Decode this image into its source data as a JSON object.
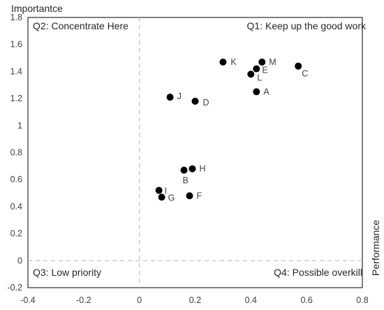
{
  "chart_data": {
    "type": "scatter",
    "title": "",
    "xlabel": "Performance",
    "ylabel": "Importantce",
    "xlim": [
      -0.4,
      0.8
    ],
    "ylim": [
      -0.2,
      1.8
    ],
    "x_ticks": [
      -0.4,
      -0.2,
      0,
      0.2,
      0.4,
      0.6,
      0.8
    ],
    "x_tick_labels": [
      "-0.4",
      "-0.2",
      "0",
      "0.2",
      "0.4",
      "0.6",
      "0.8"
    ],
    "y_ticks": [
      -0.2,
      0,
      0.2,
      0.4,
      0.6,
      0.8,
      1,
      1.2,
      1.4,
      1.6,
      1.8
    ],
    "y_tick_labels": [
      "-0.2",
      "0",
      "0.2",
      "0.4",
      "0.6",
      "0.8",
      "1",
      "1.2",
      "1.4",
      "1.6",
      "1.8"
    ],
    "grid": false,
    "reference_lines": {
      "x": 0,
      "y": 0,
      "style": "dashed",
      "color": "#bfbfbf"
    },
    "quadrant_labels": {
      "q1": "Q1: Keep up the good work",
      "q2": "Q2: Concentrate Here",
      "q3": "Q3: Low priority",
      "q4": "Q4: Possible overkill"
    },
    "marker_color": "#000000",
    "points": [
      {
        "label": "K",
        "x": 0.3,
        "y": 1.47
      },
      {
        "label": "M",
        "x": 0.44,
        "y": 1.47
      },
      {
        "label": "E",
        "x": 0.42,
        "y": 1.42
      },
      {
        "label": "L",
        "x": 0.4,
        "y": 1.38
      },
      {
        "label": "C",
        "x": 0.57,
        "y": 1.44
      },
      {
        "label": "A",
        "x": 0.42,
        "y": 1.25
      },
      {
        "label": "J",
        "x": 0.11,
        "y": 1.21
      },
      {
        "label": "D",
        "x": 0.2,
        "y": 1.18
      },
      {
        "label": "H",
        "x": 0.19,
        "y": 0.68
      },
      {
        "label": "B",
        "x": 0.16,
        "y": 0.67
      },
      {
        "label": "I",
        "x": 0.07,
        "y": 0.52
      },
      {
        "label": "G",
        "x": 0.08,
        "y": 0.47
      },
      {
        "label": "F",
        "x": 0.18,
        "y": 0.48
      }
    ]
  }
}
